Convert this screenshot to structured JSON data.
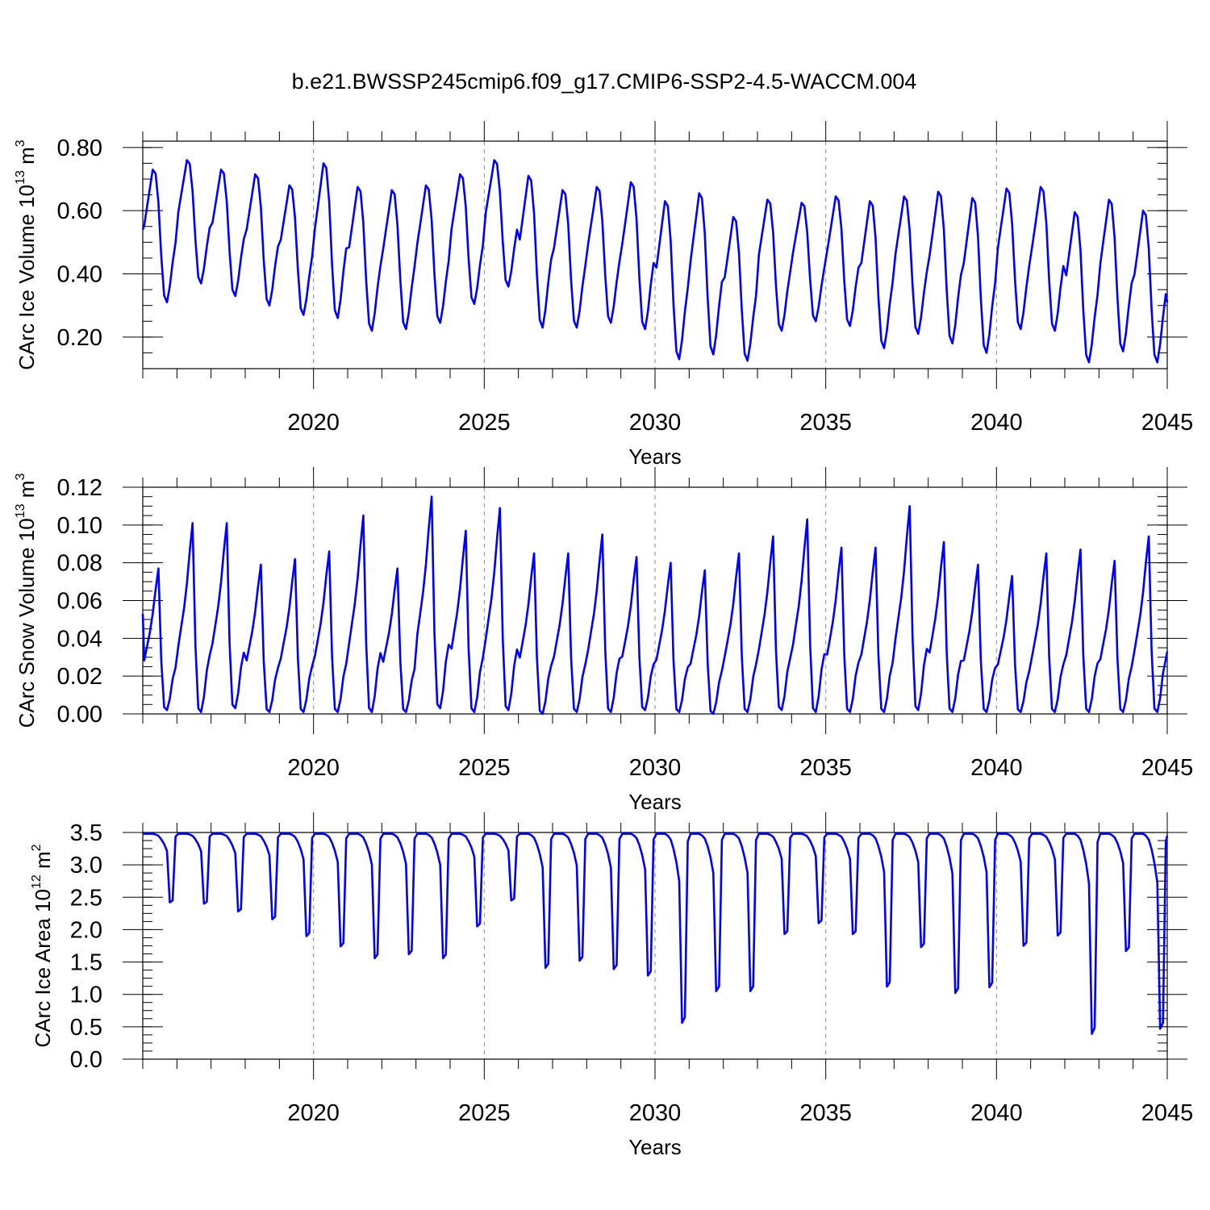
{
  "figure_title": "b.e21.BWSSP245cmip6.f09_g17.CMIP6-SSP2-4.5-WACCM.004",
  "colors": {
    "line": "#0000ff",
    "frame": "#000000",
    "grid": "#888888"
  },
  "chart_data": [
    {
      "type": "line",
      "name": "ice-volume",
      "ylabel_main": "CArc Ice Volume 10",
      "ylabel_exp": "13",
      "ylabel_unit": " m",
      "ylabel_unit_exp": "3",
      "xlabel": "Years",
      "xlim": [
        2015,
        2045
      ],
      "ylim": [
        0.1,
        0.82
      ],
      "yticks": [
        0.2,
        0.4,
        0.6,
        0.8
      ],
      "ytick_labels": [
        "0.20",
        "0.40",
        "0.60",
        "0.80"
      ],
      "xticks": [
        2020,
        2025,
        2030,
        2035,
        2040,
        2045
      ],
      "xtick_labels": [
        "2020",
        "2025",
        "2030",
        "2035",
        "2040",
        "2045"
      ],
      "grid_x": true,
      "seasonal": {
        "max": [
          0.73,
          0.76,
          0.73,
          0.715,
          0.68,
          0.75,
          0.675,
          0.665,
          0.68,
          0.715,
          0.76,
          0.71,
          0.665,
          0.675,
          0.69,
          0.63,
          0.655,
          0.58,
          0.635,
          0.625,
          0.645,
          0.63,
          0.645,
          0.66,
          0.64,
          0.67,
          0.675,
          0.595,
          0.635,
          0.6
        ],
        "min": [
          0.31,
          0.37,
          0.33,
          0.3,
          0.27,
          0.26,
          0.22,
          0.225,
          0.245,
          0.305,
          0.36,
          0.23,
          0.23,
          0.245,
          0.225,
          0.13,
          0.145,
          0.125,
          0.22,
          0.25,
          0.235,
          0.165,
          0.21,
          0.18,
          0.15,
          0.225,
          0.22,
          0.12,
          0.155,
          0.12
        ],
        "start": 0.54,
        "end": 0.31
      }
    },
    {
      "type": "line",
      "name": "snow-volume",
      "ylabel_main": "CArc Snow Volume 10",
      "ylabel_exp": "13",
      "ylabel_unit": " m",
      "ylabel_unit_exp": "3",
      "xlabel": "Years",
      "xlim": [
        2015,
        2045
      ],
      "ylim": [
        0.0,
        0.12
      ],
      "yticks": [
        0.0,
        0.02,
        0.04,
        0.06,
        0.08,
        0.1,
        0.12
      ],
      "ytick_labels": [
        "0.00",
        "0.02",
        "0.04",
        "0.06",
        "0.08",
        "0.10",
        "0.12"
      ],
      "xticks": [
        2020,
        2025,
        2030,
        2035,
        2040,
        2045
      ],
      "xtick_labels": [
        "2020",
        "2025",
        "2030",
        "2035",
        "2040",
        "2045"
      ],
      "grid_x": true,
      "seasonal": {
        "max": [
          0.077,
          0.101,
          0.101,
          0.079,
          0.082,
          0.086,
          0.105,
          0.077,
          0.115,
          0.097,
          0.109,
          0.085,
          0.085,
          0.095,
          0.083,
          0.08,
          0.076,
          0.085,
          0.094,
          0.103,
          0.088,
          0.088,
          0.11,
          0.091,
          0.079,
          0.073,
          0.085,
          0.087,
          0.081,
          0.094
        ],
        "min": [
          0.002,
          0.001,
          0.003,
          0.001,
          0.001,
          0.001,
          0.001,
          0.001,
          0.003,
          0.001,
          0.002,
          0.0,
          0.001,
          0.001,
          0.002,
          0.001,
          0.0,
          0.001,
          0.002,
          0.001,
          0.001,
          0.001,
          0.002,
          0.001,
          0.001,
          0.001,
          0.001,
          0.001,
          0.001,
          0.001
        ],
        "start": 0.053,
        "end": 0.033
      }
    },
    {
      "type": "line",
      "name": "ice-area",
      "ylabel_main": "CArc Ice Area 10",
      "ylabel_exp": "12",
      "ylabel_unit": " m",
      "ylabel_unit_exp": "2",
      "xlabel": "Years",
      "xlim": [
        2015,
        2045
      ],
      "ylim": [
        0.0,
        3.5
      ],
      "yticks": [
        0.0,
        0.5,
        1.0,
        1.5,
        2.0,
        2.5,
        3.0,
        3.5
      ],
      "ytick_labels": [
        "0.0",
        "0.5",
        "1.0",
        "1.5",
        "2.0",
        "2.5",
        "3.0",
        "3.5"
      ],
      "xticks": [
        2020,
        2025,
        2030,
        2035,
        2040,
        2045
      ],
      "xtick_labels": [
        "2020",
        "2025",
        "2030",
        "2035",
        "2040",
        "2045"
      ],
      "grid_x": true,
      "seasonal": {
        "max": [
          3.48,
          3.48,
          3.48,
          3.48,
          3.48,
          3.48,
          3.48,
          3.48,
          3.48,
          3.48,
          3.48,
          3.48,
          3.48,
          3.48,
          3.48,
          3.48,
          3.48,
          3.48,
          3.48,
          3.48,
          3.48,
          3.48,
          3.48,
          3.48,
          3.48,
          3.48,
          3.48,
          3.48,
          3.48,
          3.48
        ],
        "min": [
          2.42,
          2.4,
          2.28,
          2.16,
          1.9,
          1.74,
          1.56,
          1.62,
          1.56,
          2.05,
          2.45,
          1.41,
          1.52,
          1.39,
          1.29,
          0.56,
          1.05,
          1.05,
          1.93,
          2.1,
          1.93,
          1.12,
          1.73,
          1.02,
          1.11,
          1.75,
          1.91,
          0.39,
          1.67,
          0.47
        ],
        "start": 3.48,
        "end": 3.45
      }
    }
  ]
}
